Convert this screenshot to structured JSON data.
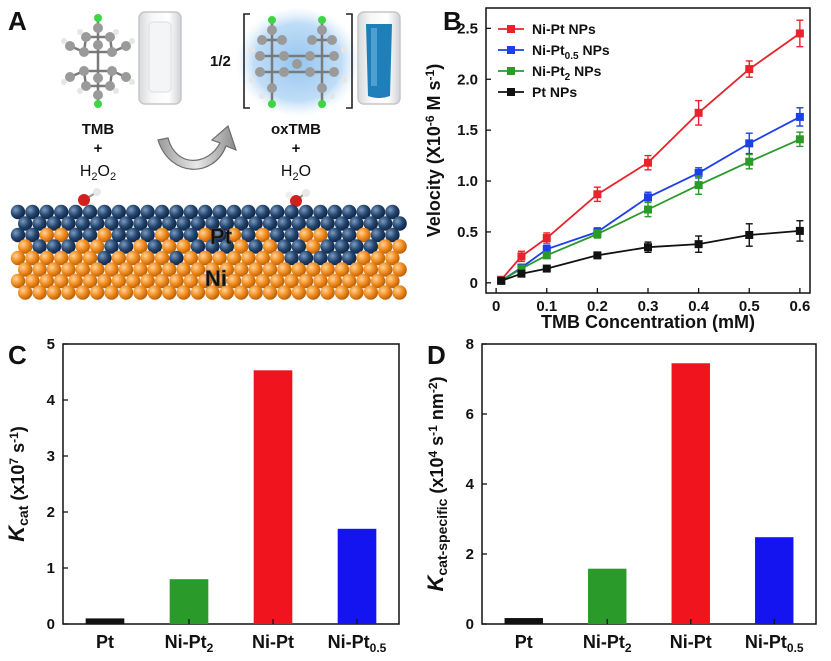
{
  "panels": {
    "a": {
      "letter": "A",
      "reactant_label": "TMB",
      "plus_1": "+",
      "h2o2_base": "H",
      "h2o2_sub1": "2",
      "h2o2_o": "O",
      "h2o2_sub2": "2",
      "fraction": "1/2",
      "product_label": "oxTMB",
      "plus_2": "+",
      "h2o_h": "H",
      "h2o_sub": "2",
      "h2o_o": "O",
      "pt_label": "Pt",
      "ni_label": "Ni",
      "colors": {
        "pt_atom": "#1f3f66",
        "ni_atom": "#f08a1c",
        "glow": "#8fc2ee",
        "blue_solution": "#1f7fb8"
      }
    },
    "b": {
      "letter": "B"
    },
    "c": {
      "letter": "C"
    },
    "d": {
      "letter": "D"
    }
  },
  "chart_data": [
    {
      "panel": "B",
      "type": "line",
      "xlabel": "TMB Concentration (mM)",
      "ylabel_parts": [
        "Velocity (X10",
        "-6",
        " M s",
        "-1",
        ")"
      ],
      "xlim": [
        -0.02,
        0.62
      ],
      "ylim": [
        -0.1,
        2.7
      ],
      "xticks": [
        0,
        0.1,
        0.2,
        0.3,
        0.4,
        0.5,
        0.6
      ],
      "xtick_labels": [
        "0",
        "0.1",
        "0.2",
        "0.3",
        "0.4",
        "0.5",
        "0.6"
      ],
      "yticks": [
        0,
        0.5,
        1.0,
        1.5,
        2.0,
        2.5
      ],
      "ytick_labels": [
        "0",
        "0.5",
        "1.0",
        "1.5",
        "2.0",
        "2.5"
      ],
      "legend_position": "top-left",
      "x": [
        0.01,
        0.05,
        0.1,
        0.2,
        0.3,
        0.4,
        0.5,
        0.6
      ],
      "series": [
        {
          "name": "Ni-Pt NPs",
          "legend_parts": [
            "Ni-Pt NPs"
          ],
          "color": "#e8232b",
          "values": [
            0.03,
            0.26,
            0.44,
            0.87,
            1.18,
            1.67,
            2.1,
            2.45
          ],
          "errors": [
            0.02,
            0.05,
            0.05,
            0.07,
            0.07,
            0.12,
            0.08,
            0.13
          ]
        },
        {
          "name": "Ni-Pt0.5 NPs",
          "legend_parts": [
            "Ni-Pt",
            "0.5",
            " NPs"
          ],
          "color": "#1c3fe8",
          "values": [
            0.02,
            0.15,
            0.33,
            0.5,
            0.84,
            1.08,
            1.37,
            1.63
          ],
          "errors": [
            0.02,
            0.03,
            0.04,
            0.04,
            0.05,
            0.05,
            0.1,
            0.09
          ]
        },
        {
          "name": "Ni-Pt2 NPs",
          "legend_parts": [
            "Ni-Pt",
            "2",
            " NPs"
          ],
          "color": "#2a9a2a",
          "values": [
            0.02,
            0.14,
            0.27,
            0.48,
            0.72,
            0.96,
            1.19,
            1.41
          ],
          "errors": [
            0.02,
            0.03,
            0.03,
            0.04,
            0.07,
            0.09,
            0.07,
            0.07
          ]
        },
        {
          "name": "Pt NPs",
          "legend_parts": [
            "Pt NPs"
          ],
          "color": "#111111",
          "values": [
            0.02,
            0.09,
            0.14,
            0.27,
            0.35,
            0.38,
            0.47,
            0.51
          ],
          "errors": [
            0.02,
            0.02,
            0.02,
            0.03,
            0.05,
            0.08,
            0.11,
            0.1
          ]
        }
      ]
    },
    {
      "panel": "C",
      "type": "bar",
      "ylabel_parts": [
        "K",
        "cat",
        " (x10",
        "7",
        " s",
        "-1",
        ")"
      ],
      "ylim": [
        0,
        5
      ],
      "yticks": [
        0,
        1,
        2,
        3,
        4,
        5
      ],
      "ytick_labels": [
        "0",
        "1",
        "2",
        "3",
        "4",
        "5"
      ],
      "categories": [
        "Pt",
        "Ni-Pt2",
        "Ni-Pt",
        "Ni-Pt0.5"
      ],
      "category_parts": [
        [
          "Pt"
        ],
        [
          "Ni-Pt",
          "2"
        ],
        [
          "Ni-Pt"
        ],
        [
          "Ni-Pt",
          "0.5"
        ]
      ],
      "values": [
        0.1,
        0.8,
        4.53,
        1.7
      ],
      "colors": [
        "#111111",
        "#2a9a2a",
        "#f0141e",
        "#1414f0"
      ]
    },
    {
      "panel": "D",
      "type": "bar",
      "ylabel_parts": [
        "K",
        "cat-specific",
        " (x10",
        "4",
        " s",
        "-1",
        " nm",
        "-2",
        ")"
      ],
      "ylim": [
        0,
        8
      ],
      "yticks": [
        0,
        2,
        4,
        6,
        8
      ],
      "ytick_labels": [
        "0",
        "2",
        "4",
        "6",
        "8"
      ],
      "categories": [
        "Pt",
        "Ni-Pt2",
        "Ni-Pt",
        "Ni-Pt0.5"
      ],
      "category_parts": [
        [
          "Pt"
        ],
        [
          "Ni-Pt",
          "2"
        ],
        [
          "Ni-Pt"
        ],
        [
          "Ni-Pt",
          "0.5"
        ]
      ],
      "values": [
        0.17,
        1.58,
        7.45,
        2.48
      ],
      "colors": [
        "#111111",
        "#2a9a2a",
        "#f0141e",
        "#1414f0"
      ]
    }
  ]
}
